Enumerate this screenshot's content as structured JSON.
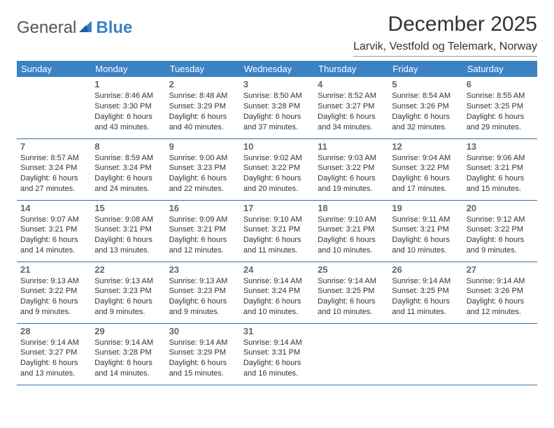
{
  "brand": {
    "part1": "General",
    "part2": "Blue"
  },
  "title": "December 2025",
  "location": "Larvik, Vestfold og Telemark, Norway",
  "colors": {
    "header_bg": "#3b82c4",
    "header_text": "#ffffff",
    "row_border": "#3b6fa0",
    "text": "#333333",
    "daynum": "#666666",
    "brand_gray": "#555555",
    "brand_blue": "#3b82c4"
  },
  "weekdays": [
    "Sunday",
    "Monday",
    "Tuesday",
    "Wednesday",
    "Thursday",
    "Friday",
    "Saturday"
  ],
  "weeks": [
    [
      null,
      {
        "n": "1",
        "sr": "8:46 AM",
        "ss": "3:30 PM",
        "dl": "6 hours and 43 minutes."
      },
      {
        "n": "2",
        "sr": "8:48 AM",
        "ss": "3:29 PM",
        "dl": "6 hours and 40 minutes."
      },
      {
        "n": "3",
        "sr": "8:50 AM",
        "ss": "3:28 PM",
        "dl": "6 hours and 37 minutes."
      },
      {
        "n": "4",
        "sr": "8:52 AM",
        "ss": "3:27 PM",
        "dl": "6 hours and 34 minutes."
      },
      {
        "n": "5",
        "sr": "8:54 AM",
        "ss": "3:26 PM",
        "dl": "6 hours and 32 minutes."
      },
      {
        "n": "6",
        "sr": "8:55 AM",
        "ss": "3:25 PM",
        "dl": "6 hours and 29 minutes."
      }
    ],
    [
      {
        "n": "7",
        "sr": "8:57 AM",
        "ss": "3:24 PM",
        "dl": "6 hours and 27 minutes."
      },
      {
        "n": "8",
        "sr": "8:59 AM",
        "ss": "3:24 PM",
        "dl": "6 hours and 24 minutes."
      },
      {
        "n": "9",
        "sr": "9:00 AM",
        "ss": "3:23 PM",
        "dl": "6 hours and 22 minutes."
      },
      {
        "n": "10",
        "sr": "9:02 AM",
        "ss": "3:22 PM",
        "dl": "6 hours and 20 minutes."
      },
      {
        "n": "11",
        "sr": "9:03 AM",
        "ss": "3:22 PM",
        "dl": "6 hours and 19 minutes."
      },
      {
        "n": "12",
        "sr": "9:04 AM",
        "ss": "3:22 PM",
        "dl": "6 hours and 17 minutes."
      },
      {
        "n": "13",
        "sr": "9:06 AM",
        "ss": "3:21 PM",
        "dl": "6 hours and 15 minutes."
      }
    ],
    [
      {
        "n": "14",
        "sr": "9:07 AM",
        "ss": "3:21 PM",
        "dl": "6 hours and 14 minutes."
      },
      {
        "n": "15",
        "sr": "9:08 AM",
        "ss": "3:21 PM",
        "dl": "6 hours and 13 minutes."
      },
      {
        "n": "16",
        "sr": "9:09 AM",
        "ss": "3:21 PM",
        "dl": "6 hours and 12 minutes."
      },
      {
        "n": "17",
        "sr": "9:10 AM",
        "ss": "3:21 PM",
        "dl": "6 hours and 11 minutes."
      },
      {
        "n": "18",
        "sr": "9:10 AM",
        "ss": "3:21 PM",
        "dl": "6 hours and 10 minutes."
      },
      {
        "n": "19",
        "sr": "9:11 AM",
        "ss": "3:21 PM",
        "dl": "6 hours and 10 minutes."
      },
      {
        "n": "20",
        "sr": "9:12 AM",
        "ss": "3:22 PM",
        "dl": "6 hours and 9 minutes."
      }
    ],
    [
      {
        "n": "21",
        "sr": "9:13 AM",
        "ss": "3:22 PM",
        "dl": "6 hours and 9 minutes."
      },
      {
        "n": "22",
        "sr": "9:13 AM",
        "ss": "3:23 PM",
        "dl": "6 hours and 9 minutes."
      },
      {
        "n": "23",
        "sr": "9:13 AM",
        "ss": "3:23 PM",
        "dl": "6 hours and 9 minutes."
      },
      {
        "n": "24",
        "sr": "9:14 AM",
        "ss": "3:24 PM",
        "dl": "6 hours and 10 minutes."
      },
      {
        "n": "25",
        "sr": "9:14 AM",
        "ss": "3:25 PM",
        "dl": "6 hours and 10 minutes."
      },
      {
        "n": "26",
        "sr": "9:14 AM",
        "ss": "3:25 PM",
        "dl": "6 hours and 11 minutes."
      },
      {
        "n": "27",
        "sr": "9:14 AM",
        "ss": "3:26 PM",
        "dl": "6 hours and 12 minutes."
      }
    ],
    [
      {
        "n": "28",
        "sr": "9:14 AM",
        "ss": "3:27 PM",
        "dl": "6 hours and 13 minutes."
      },
      {
        "n": "29",
        "sr": "9:14 AM",
        "ss": "3:28 PM",
        "dl": "6 hours and 14 minutes."
      },
      {
        "n": "30",
        "sr": "9:14 AM",
        "ss": "3:29 PM",
        "dl": "6 hours and 15 minutes."
      },
      {
        "n": "31",
        "sr": "9:14 AM",
        "ss": "3:31 PM",
        "dl": "6 hours and 16 minutes."
      },
      null,
      null,
      null
    ]
  ],
  "labels": {
    "sunrise": "Sunrise:",
    "sunset": "Sunset:",
    "daylight": "Daylight:"
  }
}
